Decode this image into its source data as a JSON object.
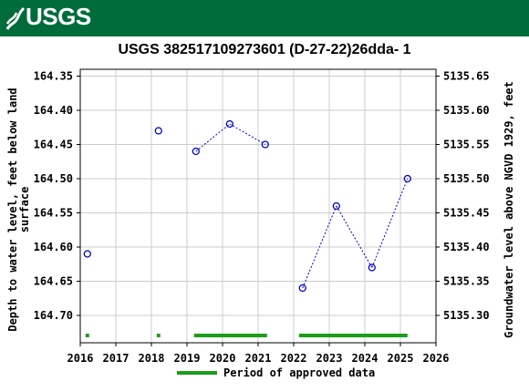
{
  "header": {
    "logo_text": "USGS"
  },
  "chart_data": {
    "type": "scatter",
    "title": "USGS 382517109273601  (D-27-22)26dda- 1",
    "ylabel_left_line1": "Depth to water level, feet below land",
    "ylabel_left_line2": "surface",
    "ylabel_right": "Groundwater level above NGVD 1929, feet",
    "xlim": [
      2016,
      2026
    ],
    "ylim_left": [
      164.74,
      164.34
    ],
    "ylim_right": [
      5135.26,
      5135.66
    ],
    "x_ticks": [
      "2016",
      "2017",
      "2018",
      "2019",
      "2020",
      "2021",
      "2022",
      "2023",
      "2024",
      "2025",
      "2026"
    ],
    "y_left_ticks": [
      "164.35",
      "164.40",
      "164.45",
      "164.50",
      "164.55",
      "164.60",
      "164.65",
      "164.70"
    ],
    "y_right_ticks": [
      "5135.65",
      "5135.60",
      "5135.55",
      "5135.50",
      "5135.45",
      "5135.40",
      "5135.35",
      "5135.30"
    ],
    "grid": true,
    "series": [
      {
        "values": [
          {
            "x": 2016.2,
            "y": 164.61
          },
          {
            "x": 2018.2,
            "y": 164.43
          },
          {
            "x": 2019.25,
            "y": 164.46
          },
          {
            "x": 2020.2,
            "y": 164.42
          },
          {
            "x": 2021.2,
            "y": 164.45
          },
          {
            "x": 2022.25,
            "y": 164.66
          },
          {
            "x": 2023.2,
            "y": 164.54
          },
          {
            "x": 2024.2,
            "y": 164.63
          },
          {
            "x": 2025.2,
            "y": 164.5
          }
        ],
        "segments": [
          [
            2,
            3
          ],
          [
            3,
            4
          ],
          [
            5,
            6
          ],
          [
            6,
            7
          ],
          [
            7,
            8
          ]
        ],
        "color": "#0000cc"
      }
    ],
    "approved_periods": [
      [
        2016.15,
        2016.25
      ],
      [
        2018.15,
        2018.25
      ],
      [
        2019.2,
        2021.25
      ],
      [
        2022.15,
        2025.2
      ]
    ],
    "approved_color": "#1a9e1a",
    "legend_label": "Period of approved data",
    "legend_position": "bottom"
  }
}
